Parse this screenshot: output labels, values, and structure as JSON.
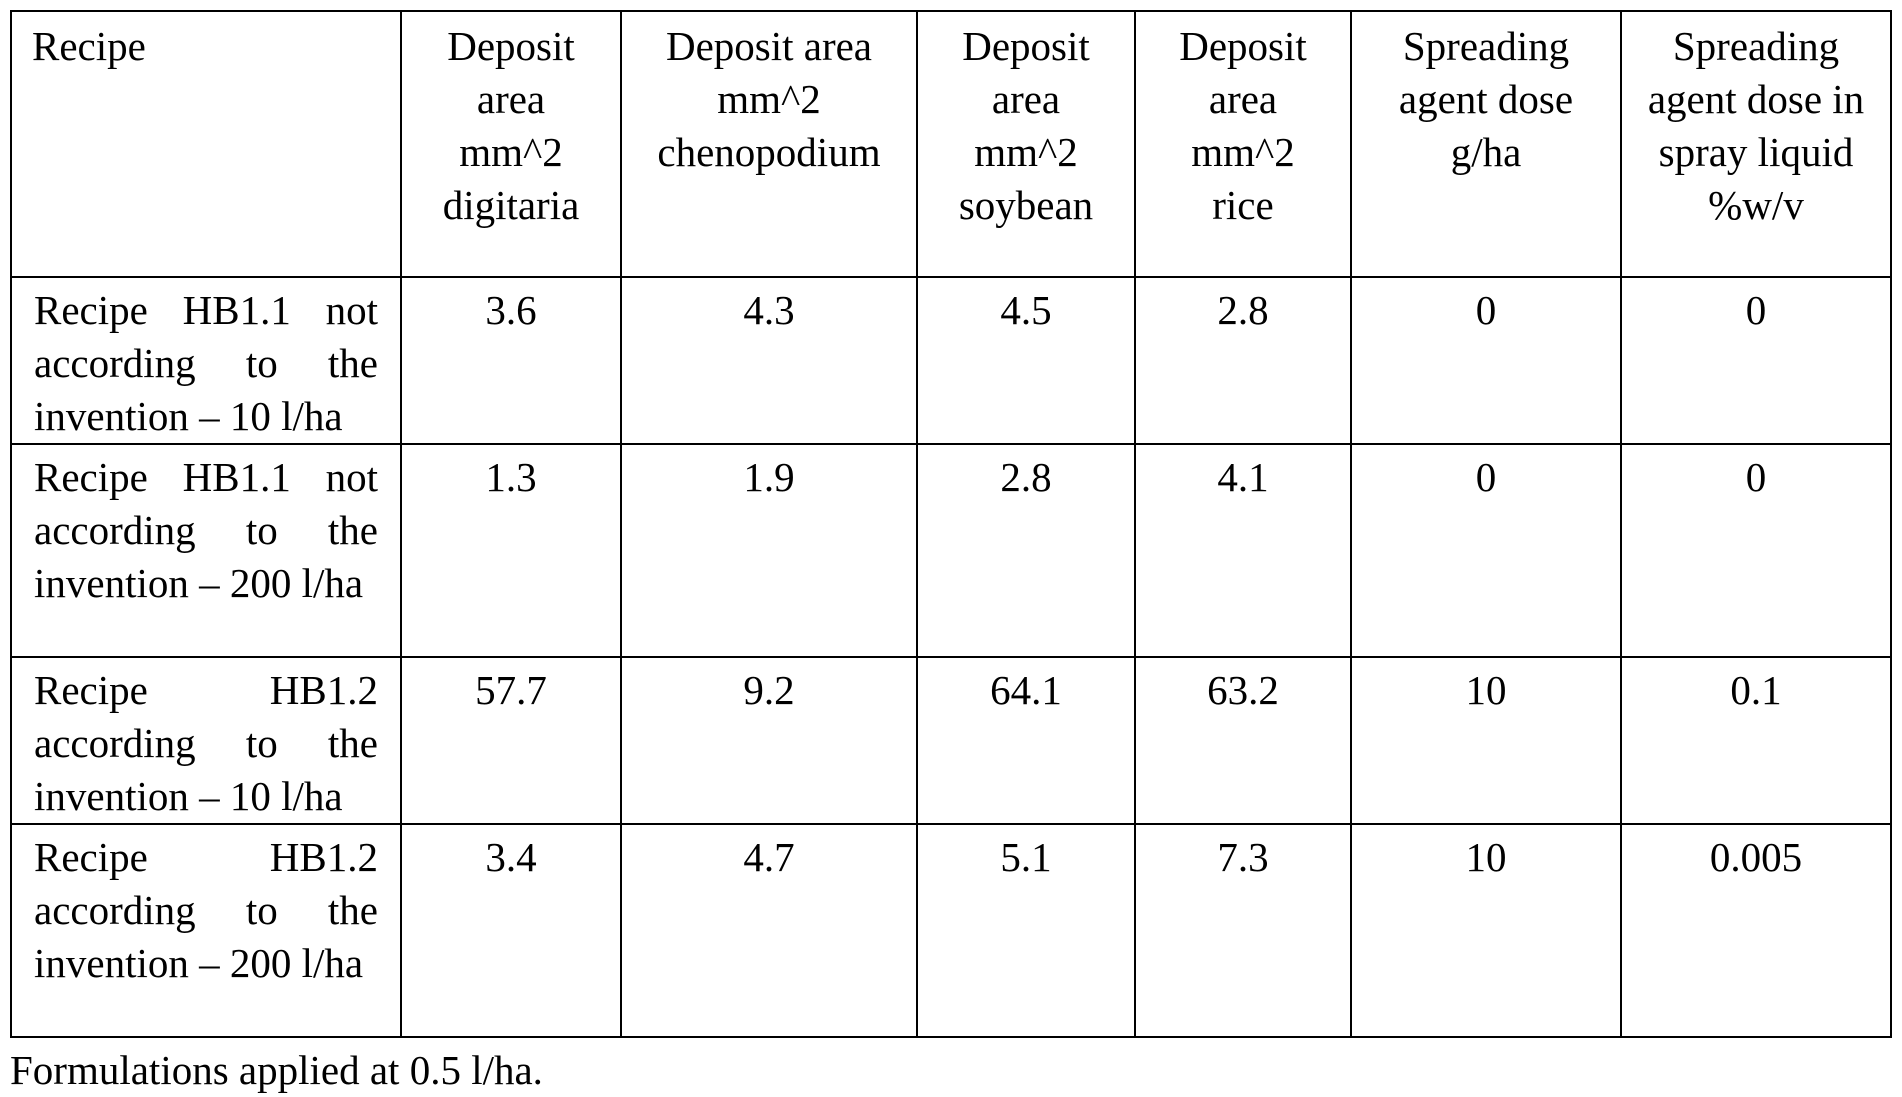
{
  "table": {
    "headers": [
      "Recipe",
      "Deposit area mm^2 digitaria",
      "Deposit area mm^2 chenopodium",
      "Deposit area mm^2 soybean",
      "Deposit area mm^2 rice",
      "Spreading agent dose g/ha",
      "Spreading agent dose in spray liquid %w/v"
    ],
    "rows": [
      {
        "recipe": "Recipe HB1.1 not according to the invention – 10 l/ha",
        "values": [
          "3.6",
          "4.3",
          "4.5",
          "2.8",
          "0",
          "0"
        ]
      },
      {
        "recipe": "Recipe HB1.1 not according to the invention – 200 l/ha",
        "values": [
          "1.3",
          "1.9",
          "2.8",
          "4.1",
          "0",
          "0"
        ]
      },
      {
        "recipe": "Recipe HB1.2 according to the invention – 10 l/ha",
        "values": [
          "57.7",
          "9.2",
          "64.1",
          "63.2",
          "10",
          "0.1"
        ]
      },
      {
        "recipe": "Recipe HB1.2 according to the invention – 200 l/ha",
        "values": [
          "3.4",
          "4.7",
          "5.1",
          "7.3",
          "10",
          "0.005"
        ]
      }
    ]
  },
  "footnote": "Formulations applied at 0.5 l/ha."
}
